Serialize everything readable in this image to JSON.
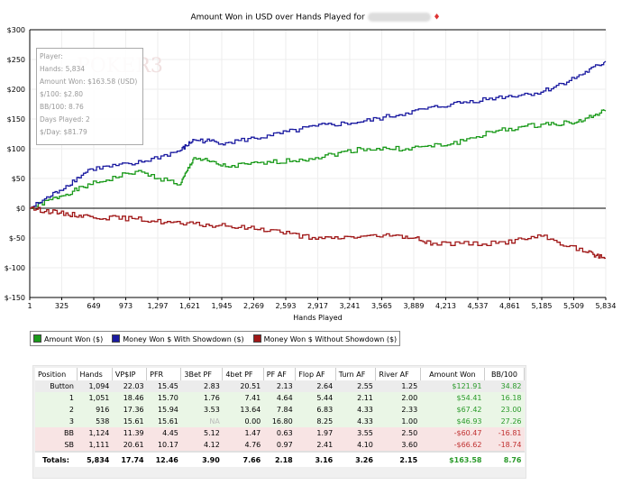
{
  "chart_data": {
    "type": "line",
    "title": "Amount Won in USD over Hands Played for",
    "xlabel": "Hands Played",
    "ylabel": "",
    "xlim": [
      1,
      5834
    ],
    "ylim": [
      -150,
      300
    ],
    "xticks": [
      "1",
      "325",
      "649",
      "973",
      "1,297",
      "1,621",
      "1,945",
      "2,269",
      "2,593",
      "2,917",
      "3,241",
      "3,565",
      "3,889",
      "4,213",
      "4,537",
      "4,861",
      "5,185",
      "5,509",
      "5,834"
    ],
    "yticks": [
      {
        "v": 300,
        "l": "$300"
      },
      {
        "v": 250,
        "l": "$250"
      },
      {
        "v": 200,
        "l": "$200"
      },
      {
        "v": 150,
        "l": "$150"
      },
      {
        "v": 100,
        "l": "$100"
      },
      {
        "v": 50,
        "l": "$50"
      },
      {
        "v": 0,
        "l": "$0"
      },
      {
        "v": -50,
        "l": "$-50"
      },
      {
        "v": -100,
        "l": "$-100"
      },
      {
        "v": -150,
        "l": "$-150"
      }
    ],
    "grid": true,
    "legend_position": "bottom-left",
    "series": [
      {
        "name": "Amount Won ($)",
        "color": "#1a9a1a",
        "x": [
          1,
          300,
          612,
          1069,
          1525,
          1662,
          1982,
          2438,
          2894,
          3351,
          3807,
          4263,
          4720,
          5177,
          5542,
          5834
        ],
        "y": [
          0,
          20,
          40,
          62,
          40,
          85,
          70,
          77,
          85,
          100,
          100,
          108,
          130,
          141,
          145,
          163.58
        ]
      },
      {
        "name": "Money Won $ With Showdown ($)",
        "color": "#1a1aa0",
        "x": [
          1,
          300,
          612,
          1069,
          1525,
          1662,
          1982,
          2438,
          2894,
          3351,
          3807,
          4263,
          4720,
          5177,
          5542,
          5834
        ],
        "y": [
          0,
          30,
          66,
          75,
          97,
          115,
          110,
          122,
          138,
          145,
          160,
          175,
          186,
          195,
          221,
          247
        ]
      },
      {
        "name": "Money Won $ Without Showdown ($)",
        "color": "#a01818",
        "x": [
          1,
          300,
          612,
          1069,
          1525,
          1982,
          2438,
          2894,
          3351,
          3807,
          4081,
          4720,
          5177,
          5633,
          5834
        ],
        "y": [
          0,
          -8,
          -14,
          -18,
          -26,
          -30,
          -36,
          -52,
          -47,
          -47,
          -59,
          -59,
          -47,
          -74,
          -84
        ]
      }
    ]
  },
  "info": {
    "player": "Player:",
    "hands": "Hands: 5,834",
    "amount_won": "Amount Won: $163.58 (USD)",
    "per100": "$/100: $2.80",
    "bb100": "BB/100: 8.76",
    "days": "Days Played: 2",
    "perday": "$/Day: $81.79"
  },
  "table": {
    "headers": [
      "Position",
      "Hands",
      "VP$IP",
      "PFR",
      "3Bet PF",
      "4bet PF",
      "PF AF",
      "Flop AF",
      "Turn AF",
      "River AF",
      "Amount Won",
      "BB/100"
    ],
    "rows": [
      [
        "Button",
        "1,094",
        "22.03",
        "15.45",
        "2.83",
        "20.51",
        "2.13",
        "2.64",
        "2.55",
        "1.25",
        "$121.91",
        "34.82"
      ],
      [
        "1",
        "1,051",
        "18.46",
        "15.70",
        "1.76",
        "7.41",
        "4.64",
        "5.44",
        "2.11",
        "2.00",
        "$54.41",
        "16.18"
      ],
      [
        "2",
        "916",
        "17.36",
        "15.94",
        "3.53",
        "13.64",
        "7.84",
        "6.83",
        "4.33",
        "2.33",
        "$67.42",
        "23.00"
      ],
      [
        "3",
        "538",
        "15.61",
        "15.61",
        "NA",
        "0.00",
        "16.80",
        "8.25",
        "4.33",
        "1.00",
        "$46.93",
        "27.26"
      ],
      [
        "BB",
        "1,124",
        "11.39",
        "4.45",
        "5.12",
        "1.47",
        "0.63",
        "1.97",
        "3.55",
        "2.50",
        "-$60.47",
        "-16.81"
      ],
      [
        "SB",
        "1,111",
        "20.61",
        "10.17",
        "4.12",
        "4.76",
        "0.97",
        "2.41",
        "4.10",
        "3.60",
        "-$66.62",
        "-18.74"
      ]
    ],
    "totals": [
      "Totals:",
      "5,834",
      "17.74",
      "12.46",
      "3.90",
      "7.66",
      "2.18",
      "3.16",
      "3.26",
      "2.15",
      "$163.58",
      "8.76"
    ]
  }
}
